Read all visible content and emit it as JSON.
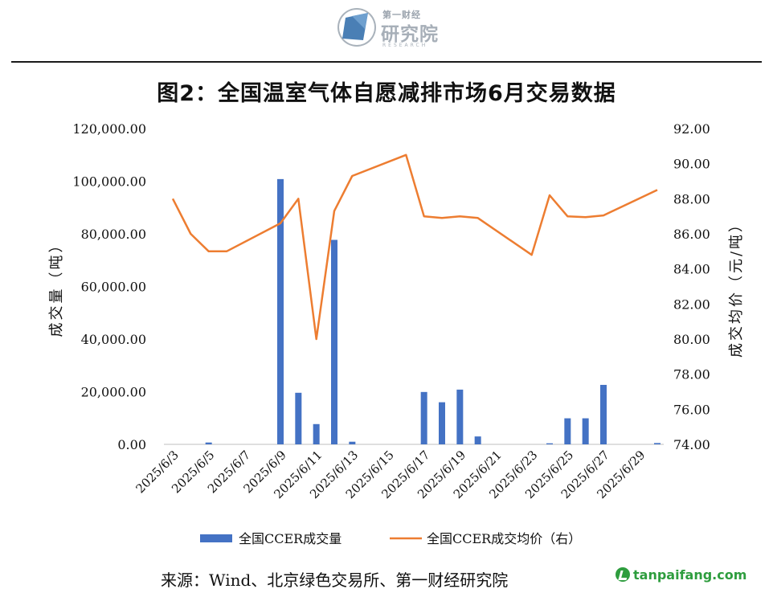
{
  "header": {
    "logo_top": "第一财经",
    "logo_main": "研究院",
    "logo_sub": "RESEARCH"
  },
  "title": "图2：全国温室气体自愿减排市场6月交易数据",
  "source": "来源：Wind、北京绿色交易所、第一财经研究院",
  "watermark": "tanpaifang.com",
  "chart_data": {
    "type": "bar+line",
    "y_left": {
      "label": "成交量（吨）",
      "ticks": [
        "120,000.00",
        "100,000.00",
        "80,000.00",
        "60,000.00",
        "40,000.00",
        "20,000.00",
        "0.00"
      ],
      "range": [
        0,
        120000
      ]
    },
    "y_right": {
      "label": "成交均价（元/吨）",
      "ticks": [
        "92.00",
        "90.00",
        "88.00",
        "86.00",
        "84.00",
        "82.00",
        "80.00",
        "78.00",
        "76.00",
        "74.00"
      ],
      "range": [
        74,
        92
      ]
    },
    "x_tick_labels": [
      "2025/6/3",
      "2025/6/5",
      "2025/6/7",
      "2025/6/9",
      "2025/6/11",
      "2025/6/13",
      "2025/6/15",
      "2025/6/17",
      "2025/6/19",
      "2025/6/21",
      "2025/6/23",
      "2025/6/25",
      "2025/6/27",
      "2025/6/29"
    ],
    "first_day": 3,
    "last_day": 30,
    "series_volume": {
      "name": "全国CCER成交量",
      "color": "#4472C4",
      "points": [
        {
          "day": 5,
          "value": 700
        },
        {
          "day": 9,
          "value": 100800
        },
        {
          "day": 10,
          "value": 19600
        },
        {
          "day": 11,
          "value": 7700
        },
        {
          "day": 12,
          "value": 77700
        },
        {
          "day": 13,
          "value": 1000
        },
        {
          "day": 17,
          "value": 19900
        },
        {
          "day": 18,
          "value": 16000
        },
        {
          "day": 19,
          "value": 20800
        },
        {
          "day": 20,
          "value": 3000
        },
        {
          "day": 24,
          "value": 400
        },
        {
          "day": 25,
          "value": 9900
        },
        {
          "day": 26,
          "value": 9900
        },
        {
          "day": 27,
          "value": 22600
        },
        {
          "day": 30,
          "value": 500
        }
      ]
    },
    "series_price": {
      "name": "全国CCER成交均价（右）",
      "color": "#ED7D31",
      "points": [
        {
          "day": 3,
          "value": 88.0
        },
        {
          "day": 4,
          "value": 86.0
        },
        {
          "day": 5,
          "value": 85.0
        },
        {
          "day": 6,
          "value": 85.0
        },
        {
          "day": 9,
          "value": 86.6
        },
        {
          "day": 10,
          "value": 88.0
        },
        {
          "day": 11,
          "value": 80.0
        },
        {
          "day": 12,
          "value": 87.3
        },
        {
          "day": 13,
          "value": 89.3
        },
        {
          "day": 16,
          "value": 90.5
        },
        {
          "day": 17,
          "value": 87.0
        },
        {
          "day": 18,
          "value": 86.9
        },
        {
          "day": 19,
          "value": 87.0
        },
        {
          "day": 20,
          "value": 86.9
        },
        {
          "day": 23,
          "value": 84.8
        },
        {
          "day": 24,
          "value": 88.2
        },
        {
          "day": 25,
          "value": 87.0
        },
        {
          "day": 26,
          "value": 86.95
        },
        {
          "day": 27,
          "value": 87.05
        },
        {
          "day": 30,
          "value": 88.5
        }
      ]
    },
    "legend_position": "bottom",
    "grid": false
  }
}
